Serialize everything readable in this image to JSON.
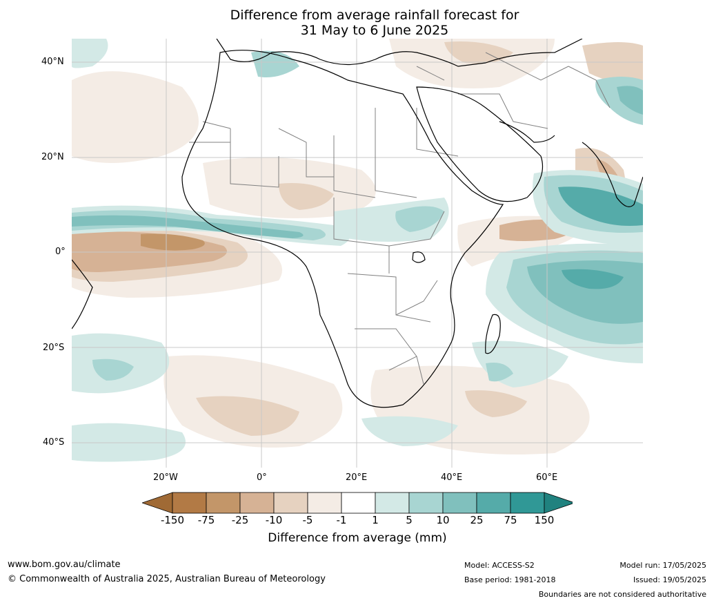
{
  "title": {
    "line1": "Difference from average rainfall forecast for",
    "line2": "31 May to 6 June 2025"
  },
  "map": {
    "lat_labels": [
      "40°N",
      "20°N",
      "0°",
      "20°S",
      "40°S"
    ],
    "lon_labels": [
      "20°W",
      "0°",
      "20°E",
      "40°E",
      "60°E"
    ],
    "colors": {
      "ocean_bg": "#ffffff",
      "coast": "#000000",
      "border": "#808080",
      "grid": "#c8c8c8"
    }
  },
  "colorbar": {
    "title": "Difference from average (mm)",
    "tick_labels": [
      "-150",
      "-75",
      "-25",
      "-10",
      "-5",
      "-1",
      "1",
      "5",
      "10",
      "25",
      "75",
      "150"
    ],
    "colors": [
      "#a06a35",
      "#b27a45",
      "#c39669",
      "#d6b295",
      "#e6d2c0",
      "#f4ece5",
      "#ffffff",
      "#d3e9e6",
      "#a8d5d2",
      "#80c0bd",
      "#55aba9",
      "#309896",
      "#20827f"
    ]
  },
  "footer": {
    "url": "www.bom.gov.au/climate",
    "copyright": "© Commonwealth of Australia 2025, Australian Bureau of Meteorology",
    "model": "Model: ACCESS-S2",
    "base_period": "Base period: 1981-2018",
    "model_run": "Model run: 17/05/2025",
    "issued": "Issued: 19/05/2025",
    "disclaimer": "Boundaries are not considered authoritative"
  }
}
